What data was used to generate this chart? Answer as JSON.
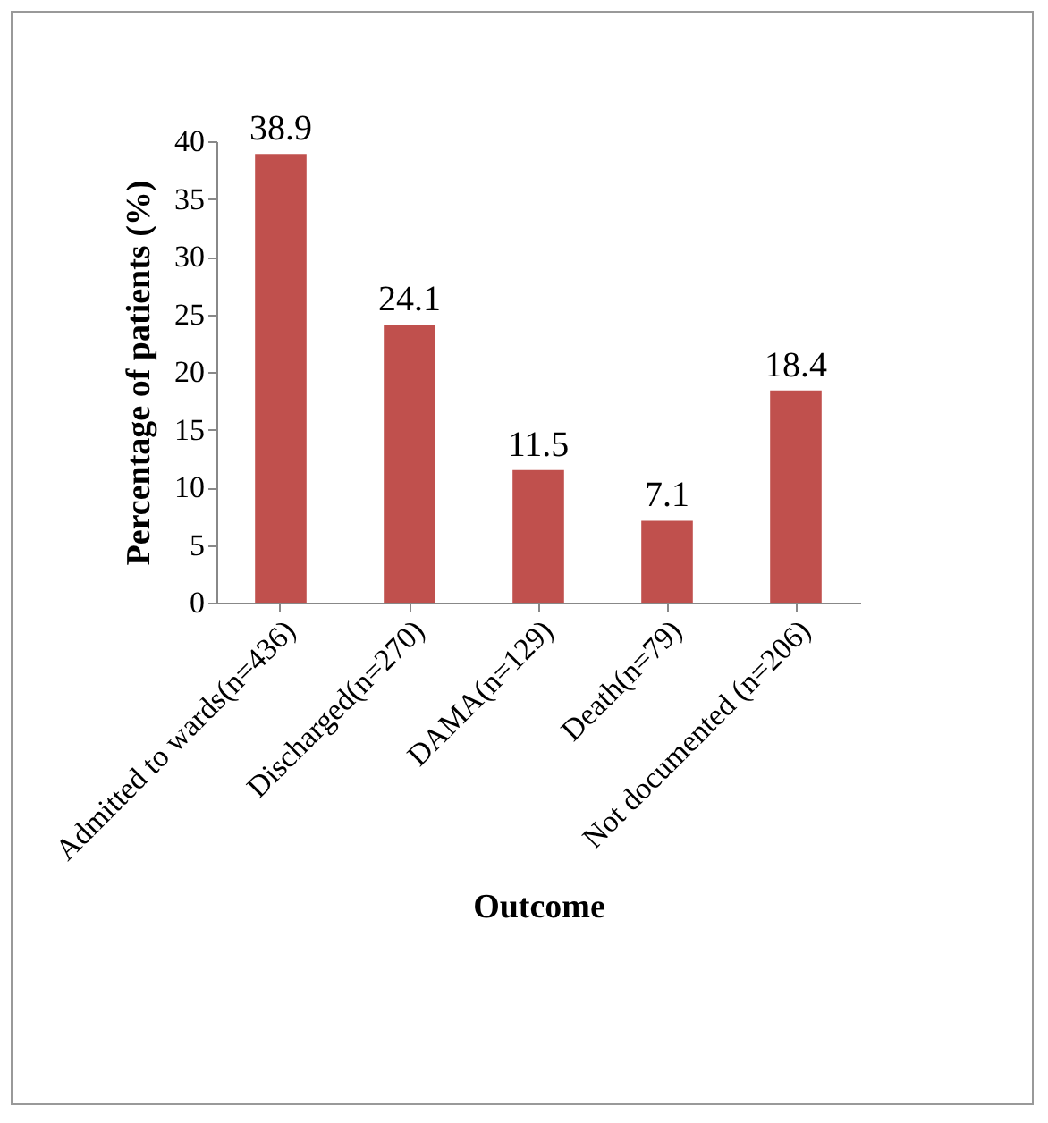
{
  "chart_data": {
    "type": "bar",
    "xlabel": "Outcome",
    "ylabel": "Percentage of  patients (%)",
    "categories": [
      "Admitted to wards(n=436)",
      "Discharged(n=270)",
      "DAMA(n=129)",
      "Death(n=79)",
      "Not documented  (n=206)"
    ],
    "values": [
      38.9,
      24.1,
      11.5,
      7.1,
      18.4
    ],
    "color": "#c0504d",
    "ylim": [
      0,
      40
    ],
    "yticks": [
      0,
      5,
      10,
      15,
      20,
      25,
      30,
      35,
      40
    ],
    "grid": false,
    "data_labels": true
  }
}
